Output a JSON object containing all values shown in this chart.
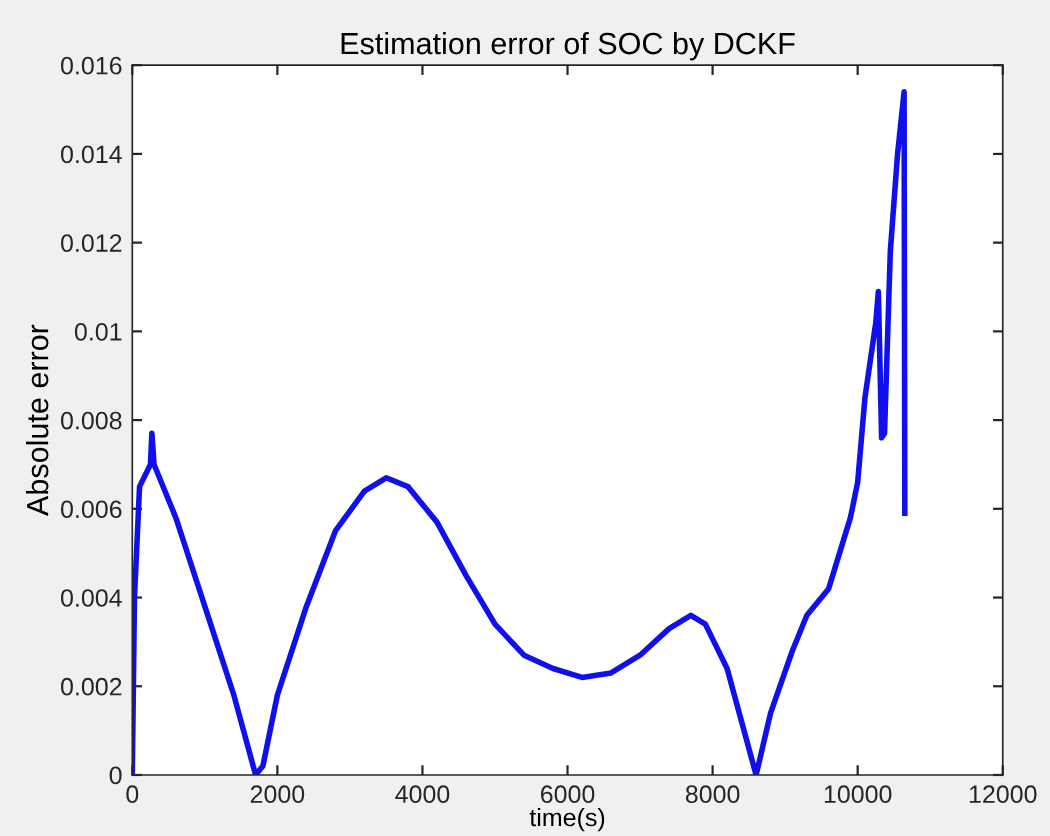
{
  "chart_data": {
    "type": "line",
    "title": "Estimation error of SOC by DCKF",
    "xlabel": "time(s)",
    "ylabel": "Absolute error",
    "xlim": [
      0,
      12000
    ],
    "xticks": [
      0,
      2000,
      4000,
      6000,
      8000,
      10000,
      12000
    ],
    "ylim": [
      0,
      0.016
    ],
    "yticks": [
      0,
      0.002,
      0.004,
      0.006,
      0.008,
      0.01,
      0.012,
      0.014,
      0.016
    ],
    "grid": false,
    "legend": false,
    "marker": "none",
    "line_style": "solid",
    "series": [
      {
        "color": "#1010ee",
        "x": [
          0,
          30,
          100,
          250,
          270,
          300,
          600,
          1000,
          1400,
          1700,
          1800,
          2000,
          2400,
          2800,
          3200,
          3500,
          3800,
          4200,
          4600,
          5000,
          5400,
          5800,
          6200,
          6600,
          7000,
          7400,
          7700,
          7900,
          8200,
          8400,
          8600,
          8800,
          9100,
          9300,
          9600,
          9900,
          10000,
          10100,
          10250,
          10285,
          10330,
          10370,
          10450,
          10550,
          10640,
          10650
        ],
        "values": [
          0,
          0.004,
          0.0065,
          0.007,
          0.0077,
          0.007,
          0.0058,
          0.0038,
          0.0018,
          0.0,
          0.0002,
          0.0018,
          0.0038,
          0.0055,
          0.0064,
          0.0067,
          0.0065,
          0.0057,
          0.0045,
          0.0034,
          0.0027,
          0.0024,
          0.0022,
          0.0023,
          0.0027,
          0.0033,
          0.0036,
          0.0034,
          0.0024,
          0.0012,
          0.0,
          0.0014,
          0.0028,
          0.0036,
          0.0042,
          0.0058,
          0.0066,
          0.0085,
          0.0102,
          0.0109,
          0.0076,
          0.0077,
          0.0118,
          0.014,
          0.0154,
          0.0059
        ]
      }
    ]
  }
}
